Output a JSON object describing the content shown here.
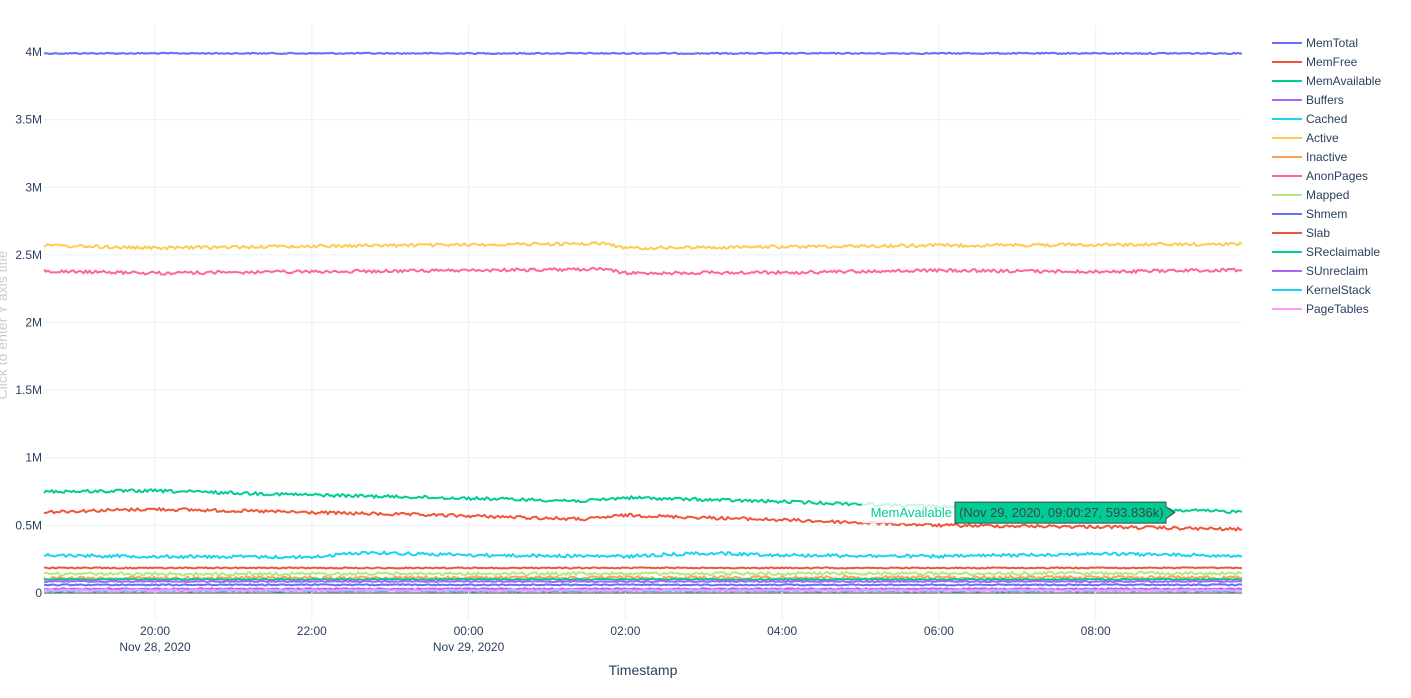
{
  "chart_data": {
    "type": "line",
    "title": "",
    "xlabel": "Timestamp",
    "ylabel": "Click to enter Y axis title",
    "x_range": [
      "2020-11-28 18:35",
      "2020-11-29 09:52"
    ],
    "x_ticks": [
      {
        "time": "2020-11-28 20:00",
        "label": "20:00",
        "sublabel": "Nov 28, 2020"
      },
      {
        "time": "2020-11-28 22:00",
        "label": "22:00",
        "sublabel": ""
      },
      {
        "time": "2020-11-29 00:00",
        "label": "00:00",
        "sublabel": "Nov 29, 2020"
      },
      {
        "time": "2020-11-29 02:00",
        "label": "02:00",
        "sublabel": ""
      },
      {
        "time": "2020-11-29 04:00",
        "label": "04:00",
        "sublabel": ""
      },
      {
        "time": "2020-11-29 06:00",
        "label": "06:00",
        "sublabel": ""
      },
      {
        "time": "2020-11-29 08:00",
        "label": "08:00",
        "sublabel": ""
      }
    ],
    "y_ticks": [
      {
        "value": 0,
        "label": "0"
      },
      {
        "value": 500000,
        "label": "0.5M"
      },
      {
        "value": 1000000,
        "label": "1M"
      },
      {
        "value": 1500000,
        "label": "1.5M"
      },
      {
        "value": 2000000,
        "label": "2M"
      },
      {
        "value": 2500000,
        "label": "2.5M"
      },
      {
        "value": 3000000,
        "label": "3M"
      },
      {
        "value": 3500000,
        "label": "3.5M"
      },
      {
        "value": 4000000,
        "label": "4M"
      }
    ],
    "ylim": [
      -200000,
      4200000
    ],
    "grid": true,
    "legend_position": "right",
    "series": [
      {
        "name": "MemTotal",
        "color": "#636efa",
        "points": [
          [
            "2020-11-28 18:35",
            3990000
          ],
          [
            "2020-11-29 09:52",
            3990000
          ]
        ]
      },
      {
        "name": "MemFree",
        "color": "#ef553b",
        "points": [
          [
            "2020-11-28 18:35",
            600000
          ],
          [
            "2020-11-28 20:00",
            620000
          ],
          [
            "2020-11-28 22:00",
            595000
          ],
          [
            "2020-11-29 00:00",
            570000
          ],
          [
            "2020-11-29 01:30",
            545000
          ],
          [
            "2020-11-29 02:00",
            575000
          ],
          [
            "2020-11-29 04:00",
            540000
          ],
          [
            "2020-11-29 06:00",
            500000
          ],
          [
            "2020-11-29 08:00",
            490000
          ],
          [
            "2020-11-29 09:52",
            470000
          ]
        ]
      },
      {
        "name": "MemAvailable",
        "color": "#00cc96",
        "points": [
          [
            "2020-11-28 18:35",
            750000
          ],
          [
            "2020-11-28 20:00",
            755000
          ],
          [
            "2020-11-28 22:00",
            725000
          ],
          [
            "2020-11-29 00:00",
            700000
          ],
          [
            "2020-11-29 01:30",
            680000
          ],
          [
            "2020-11-29 02:00",
            705000
          ],
          [
            "2020-11-29 04:00",
            675000
          ],
          [
            "2020-11-29 06:00",
            640000
          ],
          [
            "2020-11-29 08:00",
            625000
          ],
          [
            "2020-11-29 09:52",
            600000
          ]
        ]
      },
      {
        "name": "Buffers",
        "color": "#ab63fa",
        "points": [
          [
            "2020-11-28 18:35",
            30000
          ],
          [
            "2020-11-29 09:52",
            30000
          ]
        ]
      },
      {
        "name": "Cached",
        "color": "#19d3f3",
        "points": [
          [
            "2020-11-28 18:35",
            280000
          ],
          [
            "2020-11-28 20:00",
            270000
          ],
          [
            "2020-11-28 22:00",
            265000
          ],
          [
            "2020-11-28 22:40",
            300000
          ],
          [
            "2020-11-29 00:00",
            280000
          ],
          [
            "2020-11-29 02:00",
            270000
          ],
          [
            "2020-11-29 03:00",
            295000
          ],
          [
            "2020-11-29 04:00",
            280000
          ],
          [
            "2020-11-29 06:00",
            270000
          ],
          [
            "2020-11-29 08:00",
            290000
          ],
          [
            "2020-11-29 09:52",
            275000
          ]
        ]
      },
      {
        "name": "Active",
        "color": "#fecb52",
        "points": [
          [
            "2020-11-28 18:35",
            2570000
          ],
          [
            "2020-11-28 20:00",
            2550000
          ],
          [
            "2020-11-28 22:00",
            2565000
          ],
          [
            "2020-11-29 00:00",
            2575000
          ],
          [
            "2020-11-29 01:45",
            2585000
          ],
          [
            "2020-11-29 02:00",
            2550000
          ],
          [
            "2020-11-29 04:00",
            2560000
          ],
          [
            "2020-11-29 06:00",
            2570000
          ],
          [
            "2020-11-29 08:00",
            2575000
          ],
          [
            "2020-11-29 09:52",
            2580000
          ]
        ]
      },
      {
        "name": "Inactive",
        "color": "#ffa15a",
        "points": [
          [
            "2020-11-28 18:35",
            110000
          ],
          [
            "2020-11-29 09:52",
            115000
          ]
        ]
      },
      {
        "name": "AnonPages",
        "color": "#ff6692",
        "points": [
          [
            "2020-11-28 18:35",
            2380000
          ],
          [
            "2020-11-28 20:00",
            2365000
          ],
          [
            "2020-11-28 22:00",
            2375000
          ],
          [
            "2020-11-29 00:00",
            2385000
          ],
          [
            "2020-11-29 01:45",
            2395000
          ],
          [
            "2020-11-29 02:00",
            2365000
          ],
          [
            "2020-11-29 04:00",
            2370000
          ],
          [
            "2020-11-29 06:00",
            2385000
          ],
          [
            "2020-11-29 08:00",
            2375000
          ],
          [
            "2020-11-29 09:52",
            2390000
          ]
        ]
      },
      {
        "name": "Mapped",
        "color": "#b6e880",
        "points": [
          [
            "2020-11-28 18:35",
            140000
          ],
          [
            "2020-11-29 09:52",
            145000
          ]
        ]
      },
      {
        "name": "Shmem",
        "color": "#636efa",
        "points": [
          [
            "2020-11-28 18:35",
            60000
          ],
          [
            "2020-11-29 09:52",
            60000
          ]
        ]
      },
      {
        "name": "Slab",
        "color": "#ef553b",
        "points": [
          [
            "2020-11-28 18:35",
            185000
          ],
          [
            "2020-11-29 09:52",
            185000
          ]
        ]
      },
      {
        "name": "SReclaimable",
        "color": "#00cc96",
        "points": [
          [
            "2020-11-28 18:35",
            100000
          ],
          [
            "2020-11-29 09:52",
            100000
          ]
        ]
      },
      {
        "name": "SUnreclaim",
        "color": "#ab63fa",
        "points": [
          [
            "2020-11-28 18:35",
            85000
          ],
          [
            "2020-11-29 09:52",
            85000
          ]
        ]
      },
      {
        "name": "KernelStack",
        "color": "#19d3f3",
        "points": [
          [
            "2020-11-28 18:35",
            15000
          ],
          [
            "2020-11-29 09:52",
            15000
          ]
        ]
      },
      {
        "name": "PageTables",
        "color": "#ff97ff",
        "points": [
          [
            "2020-11-28 18:35",
            20000
          ],
          [
            "2020-11-29 09:52",
            20000
          ]
        ]
      }
    ],
    "hover": {
      "series": "MemAvailable",
      "label": "(Nov 29, 2020, 09:00:27, 593.836k)",
      "time": "2020-11-29 09:00:27",
      "value": 593836
    }
  }
}
